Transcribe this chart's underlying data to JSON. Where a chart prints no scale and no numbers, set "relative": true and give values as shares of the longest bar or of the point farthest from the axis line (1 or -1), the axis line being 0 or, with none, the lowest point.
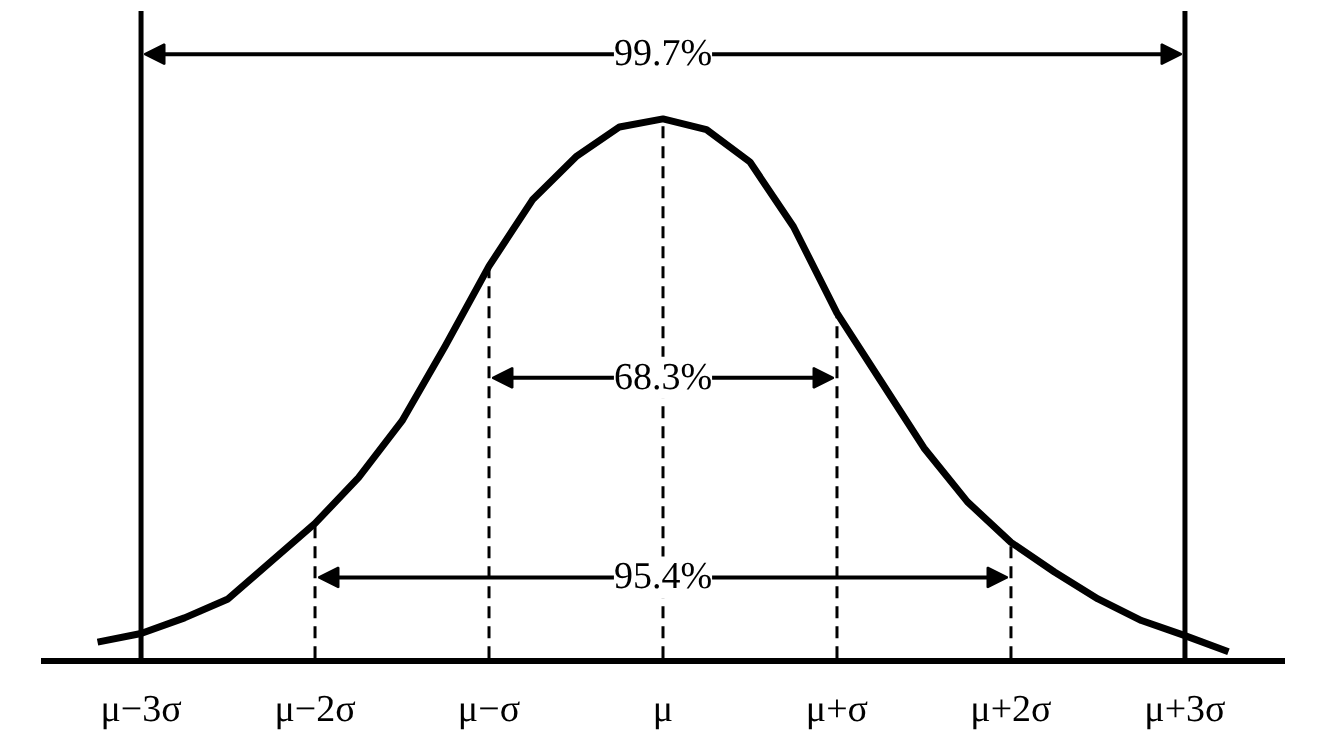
{
  "chart_data": {
    "type": "line",
    "relative": true,
    "categories": [
      null,
      null,
      "μ−3σ",
      null,
      null,
      null,
      "μ−2σ",
      null,
      null,
      null,
      "μ−σ",
      null,
      null,
      null,
      "μ",
      null,
      null,
      null,
      "μ+σ",
      null,
      null,
      null,
      "μ+2σ",
      null,
      null,
      null,
      "μ+3σ",
      null,
      null
    ],
    "series": [
      {
        "color": "#000000",
        "values": [
          null,
          0.03,
          0.046,
          0.075,
          0.11,
          0.18,
          0.25,
          0.335,
          0.44,
          0.58,
          0.727,
          0.85,
          0.93,
          0.985,
          1,
          0.98,
          0.92,
          0.8,
          0.64,
          0.515,
          0.39,
          0.29,
          0.215,
          0.16,
          0.11,
          0.07,
          0.042,
          0.012,
          null
        ]
      }
    ],
    "ref_lines": [
      {
        "axis": "x",
        "value": "μ−3σ",
        "line_style": "solid"
      },
      {
        "axis": "x",
        "value": "μ+3σ",
        "line_style": "solid"
      },
      {
        "axis": "x",
        "value": "μ−σ",
        "line_style": "dashed"
      },
      {
        "axis": "x",
        "value": "μ+σ",
        "line_style": "dashed"
      },
      {
        "axis": "x",
        "value": "μ−2σ",
        "line_style": "dashed"
      },
      {
        "axis": "x",
        "value": "μ+2σ",
        "line_style": "dashed"
      },
      {
        "axis": "x",
        "value": "μ",
        "line_style": "dashed"
      }
    ],
    "annotations": [
      "99.7%",
      "68.3%",
      "95.4%"
    ],
    "grid": false,
    "marker": "none",
    "line_style": "solid"
  }
}
